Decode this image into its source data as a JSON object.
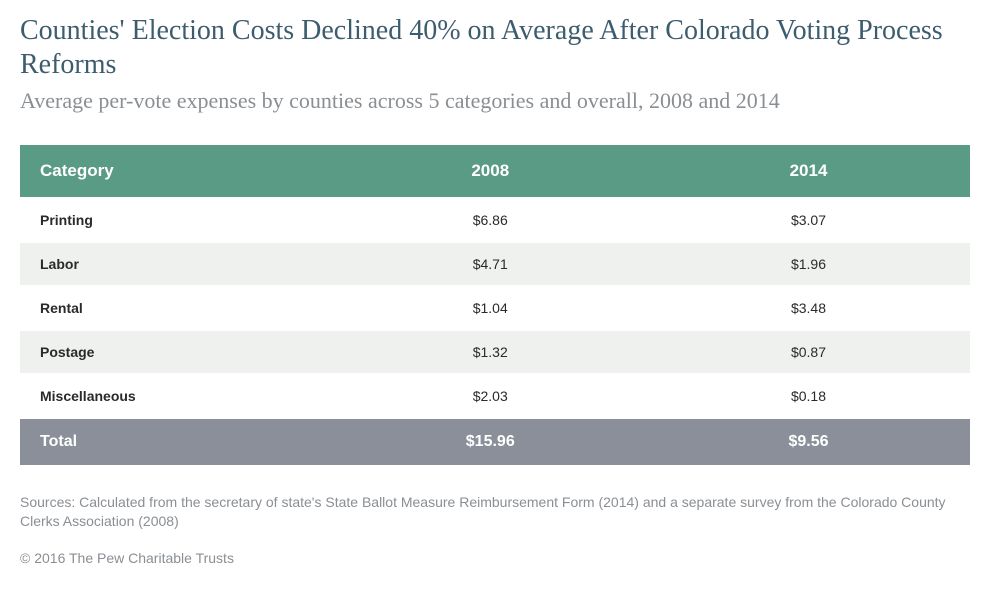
{
  "title": "Counties' Election Costs Declined 40% on Average After Colorado Voting Process Reforms",
  "subtitle": "Average per-vote expenses by counties across 5 categories and overall, 2008 and 2014",
  "table": {
    "columns": [
      "Category",
      "2008",
      "2014"
    ],
    "rows": [
      [
        "Printing",
        "$6.86",
        "$3.07"
      ],
      [
        "Labor",
        "$4.71",
        "$1.96"
      ],
      [
        "Rental",
        "$1.04",
        "$3.48"
      ],
      [
        "Postage",
        "$1.32",
        "$0.87"
      ],
      [
        "Miscellaneous",
        "$2.03",
        "$0.18"
      ]
    ],
    "total": [
      "Total",
      "$15.96",
      "$9.56"
    ],
    "colors": {
      "header_bg": "#5a9b86",
      "header_text": "#ffffff",
      "row_odd_bg": "#ffffff",
      "row_even_bg": "#eef1ee",
      "total_bg": "#8a8f99",
      "total_text": "#ffffff",
      "body_text": "#2a2a2a"
    }
  },
  "sources": "Sources: Calculated from the secretary of state's State Ballot Measure Reimbursement Form (2014) and a separate survey from the Colorado County Clerks Association (2008)",
  "copyright": "© 2016 The Pew Charitable Trusts",
  "styling": {
    "title_color": "#3d5d6f",
    "subtitle_color": "#8a8f94",
    "title_fontsize": 28,
    "subtitle_fontsize": 22,
    "sources_fontsize": 14
  }
}
